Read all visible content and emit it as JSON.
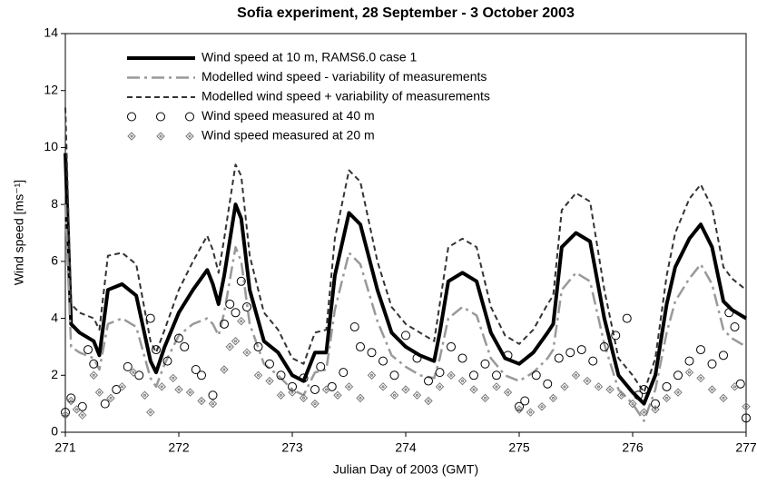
{
  "chart_data": {
    "type": "line",
    "title": "Sofia experiment, 28 September - 3 October 2003",
    "x_label": "Julian Day of 2003 (GMT)",
    "y_label": "Wind speed [ms⁻¹]",
    "xlim": [
      271,
      277
    ],
    "xticks": [
      271,
      272,
      273,
      274,
      275,
      276,
      277
    ],
    "ylim": [
      0,
      14
    ],
    "yticks": [
      0,
      2,
      4,
      6,
      8,
      10,
      12,
      14
    ],
    "legend": "top-left",
    "series": [
      {
        "name": "Wind speed at 10 m, RAMS6.0 case 1",
        "color": "#000000",
        "style": "solid",
        "x": [
          271.0,
          271.05,
          271.125,
          271.25,
          271.3,
          271.375,
          271.5,
          271.625,
          271.75,
          271.8,
          271.875,
          272.0,
          272.125,
          272.25,
          272.3,
          272.35,
          272.4,
          272.5,
          272.55,
          272.625,
          272.75,
          272.875,
          273.0,
          273.1,
          273.2,
          273.3,
          273.375,
          273.5,
          273.6,
          273.75,
          273.875,
          274.0,
          274.125,
          274.25,
          274.3,
          274.375,
          274.5,
          274.625,
          274.75,
          274.875,
          275.0,
          275.125,
          275.25,
          275.3,
          275.375,
          275.5,
          275.625,
          275.75,
          275.875,
          276.0,
          276.1,
          276.2,
          276.3,
          276.375,
          276.5,
          276.6,
          276.7,
          276.8,
          276.875,
          277.0
        ],
        "values": [
          9.8,
          3.8,
          3.5,
          3.2,
          2.7,
          5.0,
          5.2,
          4.8,
          2.5,
          2.1,
          3.0,
          4.2,
          5.0,
          5.7,
          5.2,
          4.5,
          5.5,
          8.0,
          7.5,
          5.0,
          3.2,
          2.8,
          2.0,
          1.8,
          2.8,
          2.8,
          5.5,
          7.7,
          7.3,
          5.0,
          3.5,
          3.0,
          2.7,
          2.5,
          3.5,
          5.3,
          5.6,
          5.3,
          3.5,
          2.6,
          2.4,
          2.8,
          3.5,
          3.8,
          6.5,
          7.0,
          6.7,
          4.0,
          2.0,
          1.4,
          1.0,
          2.0,
          4.5,
          5.8,
          6.8,
          7.3,
          6.5,
          4.6,
          4.3,
          4.0
        ]
      },
      {
        "name": "Modelled wind speed - variability of measurements",
        "color": "#999999",
        "style": "dashdot",
        "x": [
          271.0,
          271.05,
          271.125,
          271.25,
          271.3,
          271.375,
          271.5,
          271.625,
          271.75,
          271.8,
          271.875,
          272.0,
          272.125,
          272.25,
          272.3,
          272.35,
          272.4,
          272.5,
          272.55,
          272.625,
          272.75,
          272.875,
          273.0,
          273.1,
          273.2,
          273.3,
          273.375,
          273.5,
          273.6,
          273.75,
          273.875,
          274.0,
          274.125,
          274.25,
          274.3,
          274.375,
          274.5,
          274.625,
          274.75,
          274.875,
          275.0,
          275.125,
          275.25,
          275.3,
          275.375,
          275.5,
          275.625,
          275.75,
          275.875,
          276.0,
          276.1,
          276.2,
          276.3,
          276.375,
          276.5,
          276.6,
          276.7,
          276.8,
          276.875,
          277.0
        ],
        "values": [
          8.0,
          3.0,
          2.8,
          2.6,
          2.2,
          3.8,
          4.0,
          3.7,
          1.9,
          1.6,
          2.4,
          3.4,
          3.8,
          4.0,
          3.8,
          3.4,
          4.2,
          6.5,
          6.0,
          3.8,
          2.4,
          2.0,
          1.5,
          1.3,
          2.1,
          2.2,
          4.3,
          6.3,
          5.9,
          3.9,
          2.7,
          2.3,
          2.0,
          1.9,
          2.6,
          4.0,
          4.4,
          4.1,
          2.6,
          2.0,
          1.8,
          2.1,
          2.6,
          2.9,
          5.0,
          5.6,
          5.3,
          3.1,
          1.5,
          1.0,
          0.4,
          1.5,
          3.5,
          4.6,
          5.4,
          5.9,
          5.2,
          3.6,
          3.3,
          3.0
        ]
      },
      {
        "name": "Modelled wind speed + variability of measurements",
        "color": "#333333",
        "style": "dash",
        "x": [
          271.0,
          271.05,
          271.125,
          271.25,
          271.3,
          271.375,
          271.5,
          271.625,
          271.75,
          271.8,
          271.875,
          272.0,
          272.125,
          272.25,
          272.3,
          272.35,
          272.4,
          272.5,
          272.55,
          272.625,
          272.75,
          272.875,
          273.0,
          273.1,
          273.2,
          273.3,
          273.375,
          273.5,
          273.6,
          273.75,
          273.875,
          274.0,
          274.125,
          274.25,
          274.3,
          274.375,
          274.5,
          274.625,
          274.75,
          274.875,
          275.0,
          275.125,
          275.25,
          275.3,
          275.375,
          275.5,
          275.625,
          275.75,
          275.875,
          276.0,
          276.1,
          276.2,
          276.3,
          276.375,
          276.5,
          276.6,
          276.7,
          276.8,
          276.875,
          277.0
        ],
        "values": [
          11.4,
          4.5,
          4.2,
          4.0,
          3.6,
          6.2,
          6.3,
          5.9,
          3.2,
          2.8,
          3.6,
          5.0,
          6.0,
          6.9,
          6.4,
          5.6,
          6.8,
          9.4,
          9.0,
          6.2,
          4.2,
          3.6,
          2.6,
          2.4,
          3.5,
          3.6,
          6.8,
          9.2,
          8.8,
          6.0,
          4.4,
          3.8,
          3.5,
          3.2,
          4.5,
          6.5,
          6.8,
          6.5,
          4.4,
          3.4,
          3.1,
          3.6,
          4.5,
          4.8,
          7.8,
          8.4,
          8.1,
          5.0,
          2.6,
          2.0,
          1.4,
          2.6,
          5.5,
          7.0,
          8.2,
          8.7,
          7.9,
          5.8,
          5.4,
          5.0
        ]
      },
      {
        "name": "Wind speed measured at 40 m",
        "color": "#000000",
        "style": "circle",
        "x": [
          271.0,
          271.05,
          271.15,
          271.2,
          271.25,
          271.35,
          271.45,
          271.55,
          271.65,
          271.75,
          271.8,
          271.9,
          272.0,
          272.05,
          272.15,
          272.2,
          272.3,
          272.4,
          272.45,
          272.5,
          272.55,
          272.6,
          272.7,
          272.8,
          272.9,
          273.0,
          273.1,
          273.2,
          273.25,
          273.35,
          273.45,
          273.55,
          273.6,
          273.7,
          273.8,
          273.9,
          274.0,
          274.1,
          274.2,
          274.3,
          274.4,
          274.5,
          274.6,
          274.7,
          274.8,
          274.9,
          275.0,
          275.05,
          275.15,
          275.25,
          275.35,
          275.45,
          275.55,
          275.65,
          275.75,
          275.85,
          275.95,
          276.05,
          276.1,
          276.2,
          276.3,
          276.4,
          276.5,
          276.6,
          276.7,
          276.8,
          276.85,
          276.9,
          276.95,
          277.0
        ],
        "values": [
          0.7,
          1.2,
          0.9,
          2.9,
          2.4,
          1.0,
          1.5,
          2.3,
          2.0,
          4.0,
          2.9,
          2.5,
          3.3,
          3.0,
          2.2,
          2.0,
          1.3,
          3.8,
          4.5,
          4.2,
          5.3,
          4.4,
          3.0,
          2.4,
          2.0,
          1.6,
          1.9,
          1.5,
          2.3,
          1.6,
          2.1,
          3.7,
          3.0,
          2.8,
          2.5,
          2.0,
          3.4,
          2.6,
          1.8,
          2.1,
          3.0,
          2.6,
          2.0,
          2.4,
          2.0,
          2.7,
          0.9,
          1.1,
          2.0,
          1.7,
          2.6,
          2.8,
          2.9,
          2.5,
          3.0,
          3.4,
          4.0,
          1.3,
          1.5,
          1.0,
          1.6,
          2.0,
          2.5,
          2.9,
          2.4,
          2.7,
          4.2,
          3.7,
          1.7,
          0.5
        ]
      },
      {
        "name": "Wind speed measured at 20 m",
        "color": "#777777",
        "style": "diamond",
        "x": [
          271.0,
          271.05,
          271.1,
          271.15,
          271.25,
          271.3,
          271.4,
          271.5,
          271.6,
          271.7,
          271.75,
          271.85,
          271.95,
          272.0,
          272.1,
          272.2,
          272.3,
          272.4,
          272.45,
          272.5,
          272.55,
          272.6,
          272.7,
          272.8,
          272.9,
          273.0,
          273.1,
          273.2,
          273.3,
          273.4,
          273.5,
          273.6,
          273.7,
          273.8,
          273.9,
          274.0,
          274.1,
          274.2,
          274.3,
          274.4,
          274.5,
          274.6,
          274.7,
          274.8,
          274.9,
          275.0,
          275.1,
          275.2,
          275.3,
          275.4,
          275.5,
          275.6,
          275.7,
          275.8,
          275.9,
          276.0,
          276.1,
          276.2,
          276.3,
          276.4,
          276.5,
          276.6,
          276.7,
          276.8,
          276.9,
          277.0
        ],
        "values": [
          0.6,
          1.1,
          0.8,
          0.6,
          2.0,
          1.4,
          1.2,
          1.6,
          2.1,
          1.3,
          0.7,
          1.6,
          1.9,
          1.5,
          1.4,
          1.1,
          1.0,
          2.2,
          3.0,
          3.2,
          3.9,
          2.8,
          2.0,
          1.8,
          1.3,
          1.4,
          1.2,
          1.0,
          1.5,
          1.3,
          1.6,
          1.2,
          2.0,
          1.6,
          1.3,
          1.5,
          1.3,
          1.1,
          1.6,
          2.0,
          1.8,
          1.5,
          1.2,
          1.6,
          1.4,
          0.8,
          0.7,
          0.9,
          1.2,
          1.6,
          2.0,
          1.8,
          1.6,
          1.5,
          1.3,
          1.0,
          0.7,
          0.8,
          1.2,
          1.4,
          2.1,
          1.9,
          1.5,
          1.2,
          1.6,
          0.9
        ]
      }
    ]
  }
}
